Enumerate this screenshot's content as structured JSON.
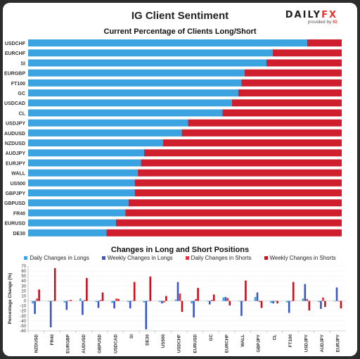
{
  "header": {
    "title": "IG Client Sentiment",
    "logo_daily": "DAILY",
    "logo_fx": "FX",
    "logo_provided": "provided by",
    "logo_ig": "IG"
  },
  "colors": {
    "long": "#3aa3e0",
    "short": "#cf1f2e",
    "daily_long": "#3aa3e0",
    "weekly_long": "#3a56c4",
    "daily_short": "#e0343c",
    "weekly_short": "#c4101f",
    "grid": "#e3e3e3"
  },
  "chart_data": [
    {
      "type": "bar",
      "orientation": "horizontal-stacked",
      "title": "Current Percentage of Clients Long/Short",
      "categories": [
        "USDCHF",
        "EURCHF",
        "SI",
        "EURGBP",
        "FT100",
        "GC",
        "USDCAD",
        "CL",
        "USDJPY",
        "AUDUSD",
        "NZDUSD",
        "AUDJPY",
        "EURJPY",
        "WALL",
        "US500",
        "GBPJPY",
        "GBPUSD",
        "FR40",
        "EURUSD",
        "DE30"
      ],
      "series": [
        {
          "name": "Long",
          "values": [
            89,
            78,
            76,
            69,
            68,
            67,
            65,
            62,
            51,
            49,
            43,
            37,
            36,
            35,
            34,
            34,
            32,
            31,
            28,
            25
          ]
        },
        {
          "name": "Short",
          "values": [
            11,
            22,
            24,
            31,
            32,
            33,
            35,
            38,
            49,
            51,
            57,
            63,
            64,
            65,
            66,
            66,
            68,
            69,
            72,
            75
          ]
        }
      ],
      "xlim": [
        0,
        100
      ]
    },
    {
      "type": "bar",
      "title": "Changes in Long and Short Positions",
      "ylabel": "Percentage Change (%)",
      "ylim": [
        -60,
        70
      ],
      "yticks": [
        70,
        60,
        50,
        40,
        30,
        20,
        10,
        0,
        -10,
        -20,
        -30,
        -40,
        -50,
        -60
      ],
      "categories": [
        "NZDUSD",
        "FR40",
        "EURGBP",
        "AUDUSD",
        "GBPUSD",
        "USDCAD",
        "SI",
        "DE30",
        "US500",
        "USDCHF",
        "EURUSD",
        "GC",
        "EURCHF",
        "WALL",
        "GBPJPY",
        "CL",
        "FT100",
        "USDJPY",
        "AUDJPY",
        "EURJPY"
      ],
      "series": [
        {
          "name": "Daily Changes in Longs",
          "values": [
            -5,
            -1,
            -3,
            5,
            -2,
            -4,
            -2,
            -3,
            -2,
            3,
            -5,
            -1,
            7,
            -1,
            8,
            -4,
            -3,
            5,
            -2,
            -1
          ]
        },
        {
          "name": "Weekly Changes in Longs",
          "values": [
            -26,
            -53,
            -18,
            -28,
            -14,
            -15,
            -15,
            -57,
            -5,
            38,
            -33,
            -7,
            8,
            -30,
            17,
            -5,
            -24,
            34,
            -16,
            27
          ]
        },
        {
          "name": "Daily Changes in Shorts",
          "values": [
            5,
            0,
            1,
            2,
            2,
            5,
            0,
            0,
            -3,
            15,
            4,
            2,
            6,
            0,
            -2,
            -1,
            0,
            4,
            7,
            -1
          ]
        },
        {
          "name": "Weekly Changes in Shorts",
          "values": [
            23,
            66,
            2,
            46,
            17,
            4,
            38,
            49,
            10,
            -22,
            26,
            13,
            -9,
            41,
            -14,
            -5,
            38,
            -19,
            -12,
            -15
          ]
        }
      ]
    }
  ]
}
